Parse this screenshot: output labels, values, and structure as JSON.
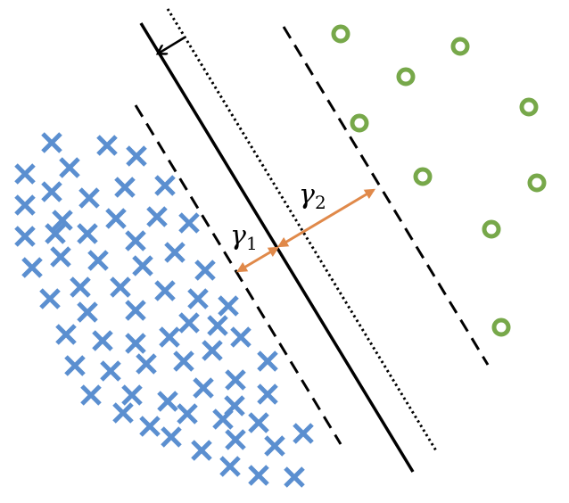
{
  "diagram": {
    "labels": {
      "gamma1": {
        "symbol": "γ",
        "subscript": "1"
      },
      "gamma2": {
        "symbol": "γ",
        "subscript": "2"
      }
    },
    "colors": {
      "cross": "#5B8FD0",
      "circle_ring": "#77A84A",
      "margin_arrow": "#E0894A",
      "line": "#000000"
    },
    "class_a_marker": "cross-icon",
    "class_b_marker": "circle-icon",
    "lines": [
      {
        "name": "decision-boundary",
        "style": "solid"
      },
      {
        "name": "shifted-boundary",
        "style": "dotted"
      },
      {
        "name": "left-margin",
        "style": "dashed"
      },
      {
        "name": "right-margin",
        "style": "dashed"
      }
    ],
    "shift_arrow_icon": "arrow-icon"
  }
}
